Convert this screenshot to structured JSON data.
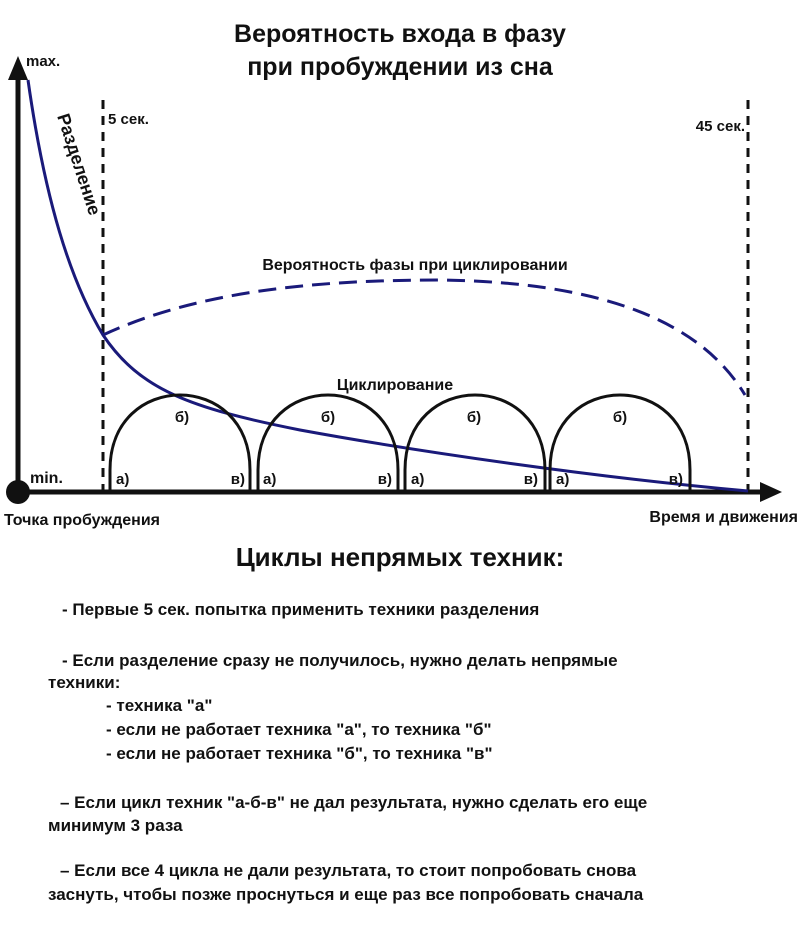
{
  "title": {
    "line1": "Вероятность входа в фазу",
    "line2": "при пробуждении из сна"
  },
  "axis": {
    "y_max": "max.",
    "y_min": "min.",
    "x_origin": "Точка пробуждения",
    "x_end": "Время и движения"
  },
  "markers": {
    "start": "5 сек.",
    "end": "45 сек."
  },
  "labels": {
    "separation": "Разделение",
    "phase_probability": "Вероятность фазы при циклировании",
    "cycling": "Циклирование"
  },
  "cycles": [
    {
      "a": "а)",
      "b": "б)",
      "c": "в)"
    },
    {
      "a": "а)",
      "b": "б)",
      "c": "в)"
    },
    {
      "a": "а)",
      "b": "б)",
      "c": "в)"
    },
    {
      "a": "а)",
      "b": "б)",
      "c": "в)"
    }
  ],
  "colors": {
    "curve": "#1a1a7a",
    "ink": "#111111"
  },
  "text": {
    "heading": "Циклы непрямых техник:",
    "p1": "- Первые 5 сек. попытка применить техники разделения",
    "p2_l1": "- Если разделение сразу не получилось, нужно делать непрямые",
    "p2_l2": "техники:",
    "i1": "- техника \"а\"",
    "i2": "- если не работает техника \"а\", то техника \"б\"",
    "i3": "- если не работает техника \"б\", то техника \"в\"",
    "p3_l1": "– Если цикл техник \"а-б-в\" не дал результата, нужно сделать его еще",
    "p3_l2": "минимум 3 раза",
    "p4_l1": "– Если все 4 цикла не дали результата, то стоит попробовать снова",
    "p4_l2": "заснуть, чтобы позже проснуться и еще раз все попробовать сначала"
  }
}
